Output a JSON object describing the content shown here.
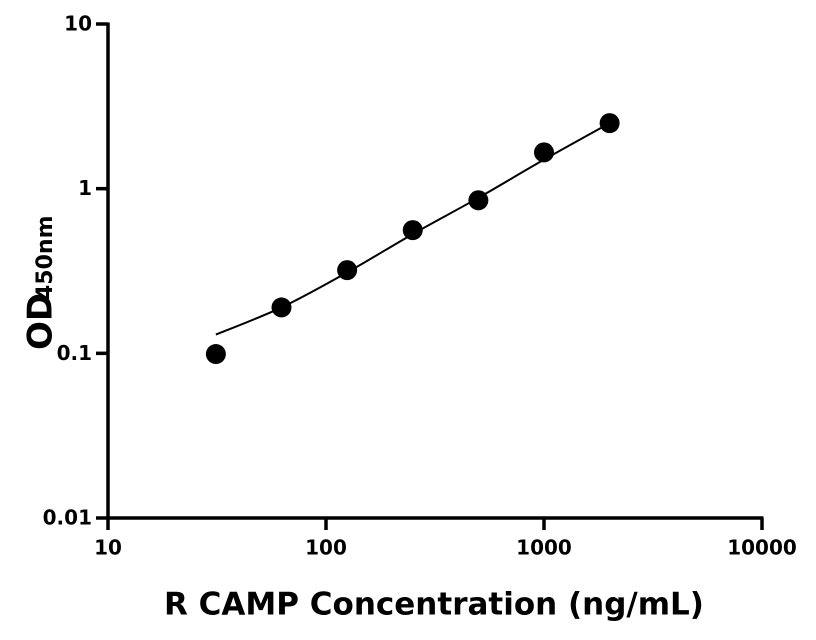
{
  "chart_data": {
    "type": "scatter",
    "x_label": "R CAMP Concentration (ng/mL)",
    "y_label": {
      "main": "OD",
      "subscript": "450nm"
    },
    "x": [
      31.25,
      62.5,
      125,
      250,
      500,
      1000,
      2000
    ],
    "series": [
      {
        "color": "#000000",
        "style": "points",
        "values": [
          0.099,
          0.19,
          0.32,
          0.56,
          0.85,
          1.66,
          2.5
        ]
      },
      {
        "color": "#000000",
        "style": "line",
        "values": [
          0.13,
          0.19,
          0.31,
          0.53,
          0.88,
          1.5,
          2.5
        ]
      }
    ],
    "xscale": "log",
    "yscale": "log",
    "xlim": [
      10,
      10000
    ],
    "ylim": [
      0.01,
      10
    ],
    "xticks": [
      10,
      100,
      1000,
      10000
    ],
    "yticks": [
      0.01,
      0.1,
      1,
      10
    ],
    "grid": false
  }
}
